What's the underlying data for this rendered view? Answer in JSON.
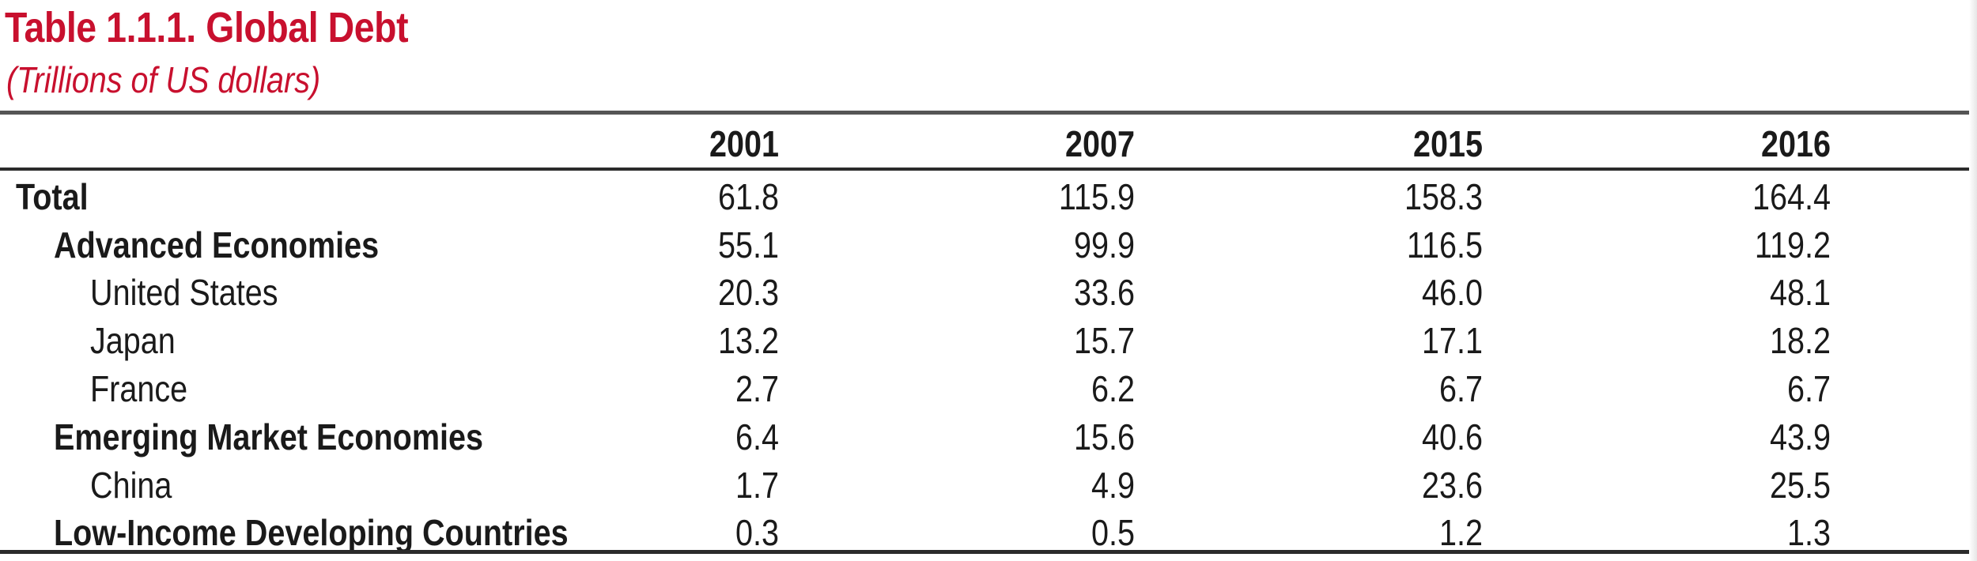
{
  "title": "Table 1.1.1. Global Debt",
  "subtitle": "(Trillions of US dollars)",
  "columns": [
    "2001",
    "2007",
    "2015",
    "2016"
  ],
  "rows": [
    {
      "label": "Total",
      "values": [
        "61.8",
        "115.9",
        "158.3",
        "164.4"
      ]
    },
    {
      "label": "Advanced Economies",
      "values": [
        "55.1",
        "99.9",
        "116.5",
        "119.2"
      ]
    },
    {
      "label": "United States",
      "values": [
        "20.3",
        "33.6",
        "46.0",
        "48.1"
      ]
    },
    {
      "label": "Japan",
      "values": [
        "13.2",
        "15.7",
        "17.1",
        "18.2"
      ]
    },
    {
      "label": "France",
      "values": [
        "2.7",
        "6.2",
        "6.7",
        "6.7"
      ]
    },
    {
      "label": "Emerging Market Economies",
      "values": [
        "6.4",
        "15.6",
        "40.6",
        "43.9"
      ]
    },
    {
      "label": "China",
      "values": [
        "1.7",
        "4.9",
        "23.6",
        "25.5"
      ]
    },
    {
      "label": "Low-Income Developing Countries",
      "values": [
        "0.3",
        "0.5",
        "1.2",
        "1.3"
      ]
    }
  ],
  "colors": {
    "title": "#c8102e",
    "text": "#1a1a1a",
    "rule": "#2b2b2b"
  }
}
